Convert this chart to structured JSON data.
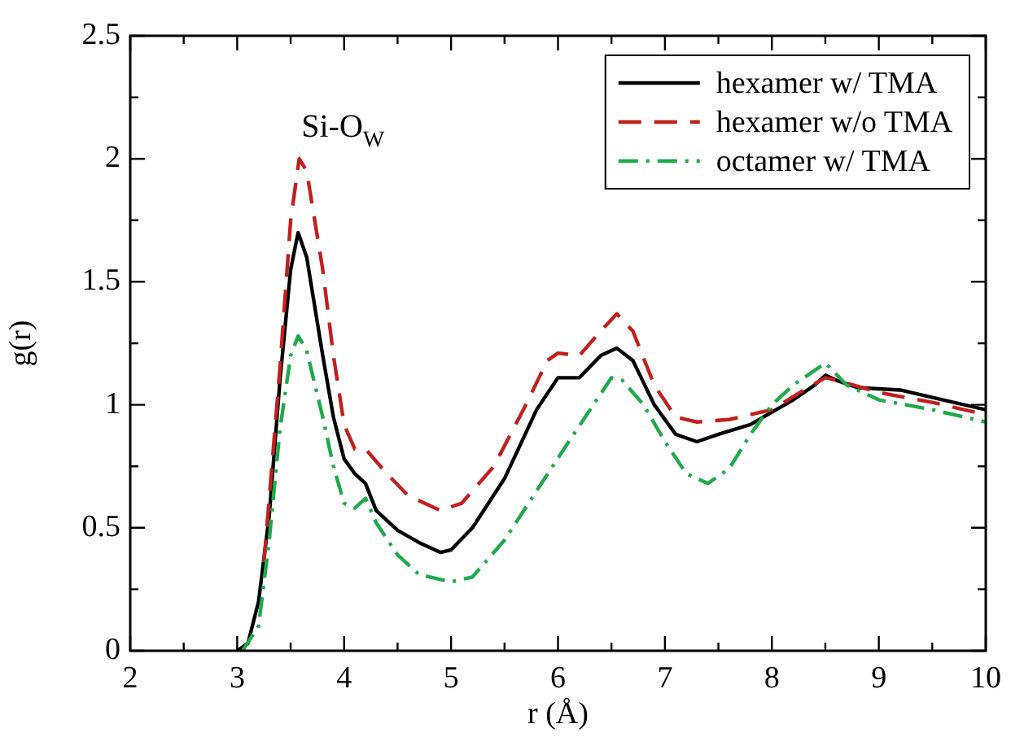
{
  "chart_data": {
    "type": "line",
    "xlabel": "r (Å)",
    "ylabel": "g(r)",
    "annotations": [
      "Si-O$_{W}$"
    ],
    "xlim": [
      2,
      10
    ],
    "ylim": [
      0,
      2.5
    ],
    "xticks": [
      2,
      {
        "value": 2.5,
        "label": null
      },
      3,
      {
        "value": 3.5,
        "label": null
      },
      4,
      {
        "value": 4.5,
        "label": null
      },
      5,
      {
        "value": 5.5,
        "label": null
      },
      6,
      {
        "value": 6.5,
        "label": null
      },
      7,
      {
        "value": 7.5,
        "label": null
      },
      8,
      {
        "value": 8.5,
        "label": null
      },
      9,
      {
        "value": 9.5,
        "label": null
      },
      10
    ],
    "yticks": [
      0,
      {
        "value": 0.25,
        "label": null
      },
      0.5,
      {
        "value": 0.75,
        "label": null
      },
      1,
      {
        "value": 1.25,
        "label": null
      },
      1.5,
      {
        "value": 1.75,
        "label": null
      },
      2,
      {
        "value": 2.25,
        "label": null
      },
      2.5
    ],
    "grid": false,
    "legend": "top right",
    "marker": "none",
    "series": [
      {
        "name": "hexamer w/ TMA",
        "color": "#000000",
        "line_style": "solid",
        "x": [
          3.0,
          3.1,
          3.2,
          3.3,
          3.4,
          3.5,
          3.57,
          3.65,
          3.8,
          3.9,
          4.0,
          4.1,
          4.2,
          4.3,
          4.5,
          4.7,
          4.9,
          5.0,
          5.2,
          5.5,
          5.8,
          6.0,
          6.2,
          6.4,
          6.55,
          6.7,
          6.9,
          7.1,
          7.3,
          7.5,
          7.8,
          8.0,
          8.2,
          8.4,
          8.5,
          8.6,
          8.8,
          9.2,
          9.6,
          10.0
        ],
        "values": [
          0,
          0.03,
          0.2,
          0.55,
          1.1,
          1.55,
          1.7,
          1.6,
          1.2,
          0.95,
          0.78,
          0.72,
          0.68,
          0.57,
          0.49,
          0.44,
          0.4,
          0.41,
          0.5,
          0.7,
          0.98,
          1.11,
          1.11,
          1.2,
          1.23,
          1.18,
          1.0,
          0.88,
          0.85,
          0.88,
          0.92,
          0.97,
          1.02,
          1.08,
          1.12,
          1.1,
          1.07,
          1.06,
          1.02,
          0.98
        ]
      },
      {
        "name": "hexamer w/o TMA",
        "color": "#c0201e",
        "line_style": "dashed",
        "x": [
          3.25,
          3.3,
          3.4,
          3.5,
          3.58,
          3.65,
          3.8,
          3.9,
          4.0,
          4.1,
          4.2,
          4.4,
          4.6,
          4.9,
          5.1,
          5.4,
          5.7,
          5.9,
          6.0,
          6.2,
          6.4,
          6.55,
          6.7,
          6.9,
          7.1,
          7.3,
          7.6,
          8.0,
          8.3,
          8.5,
          8.6,
          9.0,
          9.5,
          10.0
        ],
        "values": [
          0.36,
          0.62,
          1.15,
          1.75,
          2.0,
          1.95,
          1.55,
          1.2,
          0.92,
          0.82,
          0.82,
          0.72,
          0.63,
          0.57,
          0.6,
          0.75,
          1.0,
          1.18,
          1.21,
          1.2,
          1.3,
          1.37,
          1.3,
          1.08,
          0.95,
          0.93,
          0.94,
          0.98,
          1.06,
          1.11,
          1.1,
          1.05,
          1.01,
          0.96
        ]
      },
      {
        "name": "octamer w/ TMA",
        "color": "#1faa4a",
        "line_style": "dashdot",
        "x": [
          3.05,
          3.2,
          3.3,
          3.4,
          3.5,
          3.57,
          3.65,
          3.8,
          3.9,
          4.0,
          4.1,
          4.2,
          4.3,
          4.5,
          4.7,
          5.0,
          5.2,
          5.5,
          5.8,
          6.1,
          6.3,
          6.5,
          6.6,
          6.8,
          7.0,
          7.2,
          7.4,
          7.6,
          7.8,
          8.0,
          8.2,
          8.5,
          8.7,
          9.0,
          9.5,
          10.0
        ],
        "values": [
          0,
          0.1,
          0.45,
          0.9,
          1.2,
          1.28,
          1.22,
          0.95,
          0.75,
          0.6,
          0.58,
          0.62,
          0.52,
          0.39,
          0.31,
          0.28,
          0.3,
          0.45,
          0.65,
          0.85,
          0.98,
          1.11,
          1.1,
          1.0,
          0.85,
          0.72,
          0.68,
          0.74,
          0.88,
          1.0,
          1.08,
          1.17,
          1.08,
          1.02,
          0.98,
          0.93
        ]
      }
    ]
  }
}
